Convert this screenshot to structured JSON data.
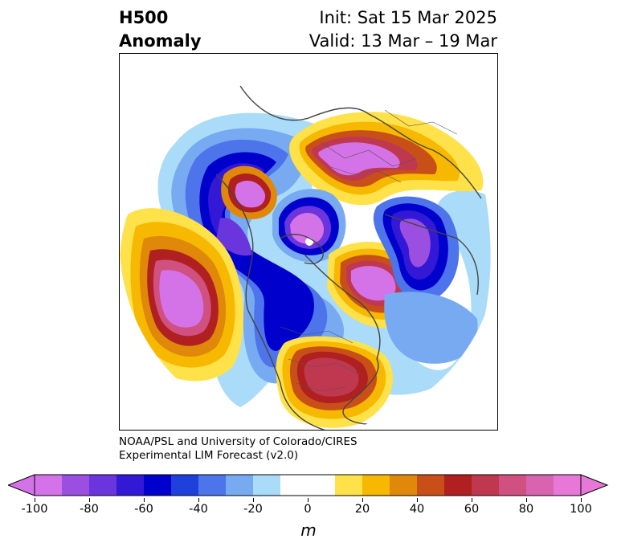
{
  "title": {
    "left_line1": "H500",
    "left_line2": "Anomaly",
    "right_line1": "Init: Sat 15 Mar 2025",
    "right_line2": "Valid: 13 Mar – 19 Mar"
  },
  "credit": {
    "line1": "NOAA/PSL and University of Colorado/CIRES",
    "line2": "Experimental LIM Forecast (v2.0)"
  },
  "colorbar": {
    "unit": "m",
    "range": [
      -100,
      100
    ],
    "step": 10,
    "tick_labels": [
      "-100",
      "-80",
      "-60",
      "-40",
      "-20",
      "0",
      "20",
      "40",
      "60",
      "80",
      "100"
    ],
    "colors": [
      "#d473e8",
      "#9b4fe0",
      "#6a35dc",
      "#3318d6",
      "#0000cc",
      "#2040dc",
      "#4d74ea",
      "#78aaf2",
      "#aadcfa",
      "#ffffff",
      "#ffffff",
      "#ffe14a",
      "#f6b800",
      "#e0880a",
      "#c85018",
      "#b02020",
      "#c03850",
      "#d05080",
      "#d864b0",
      "#e878d8"
    ],
    "extend": "both"
  }
}
